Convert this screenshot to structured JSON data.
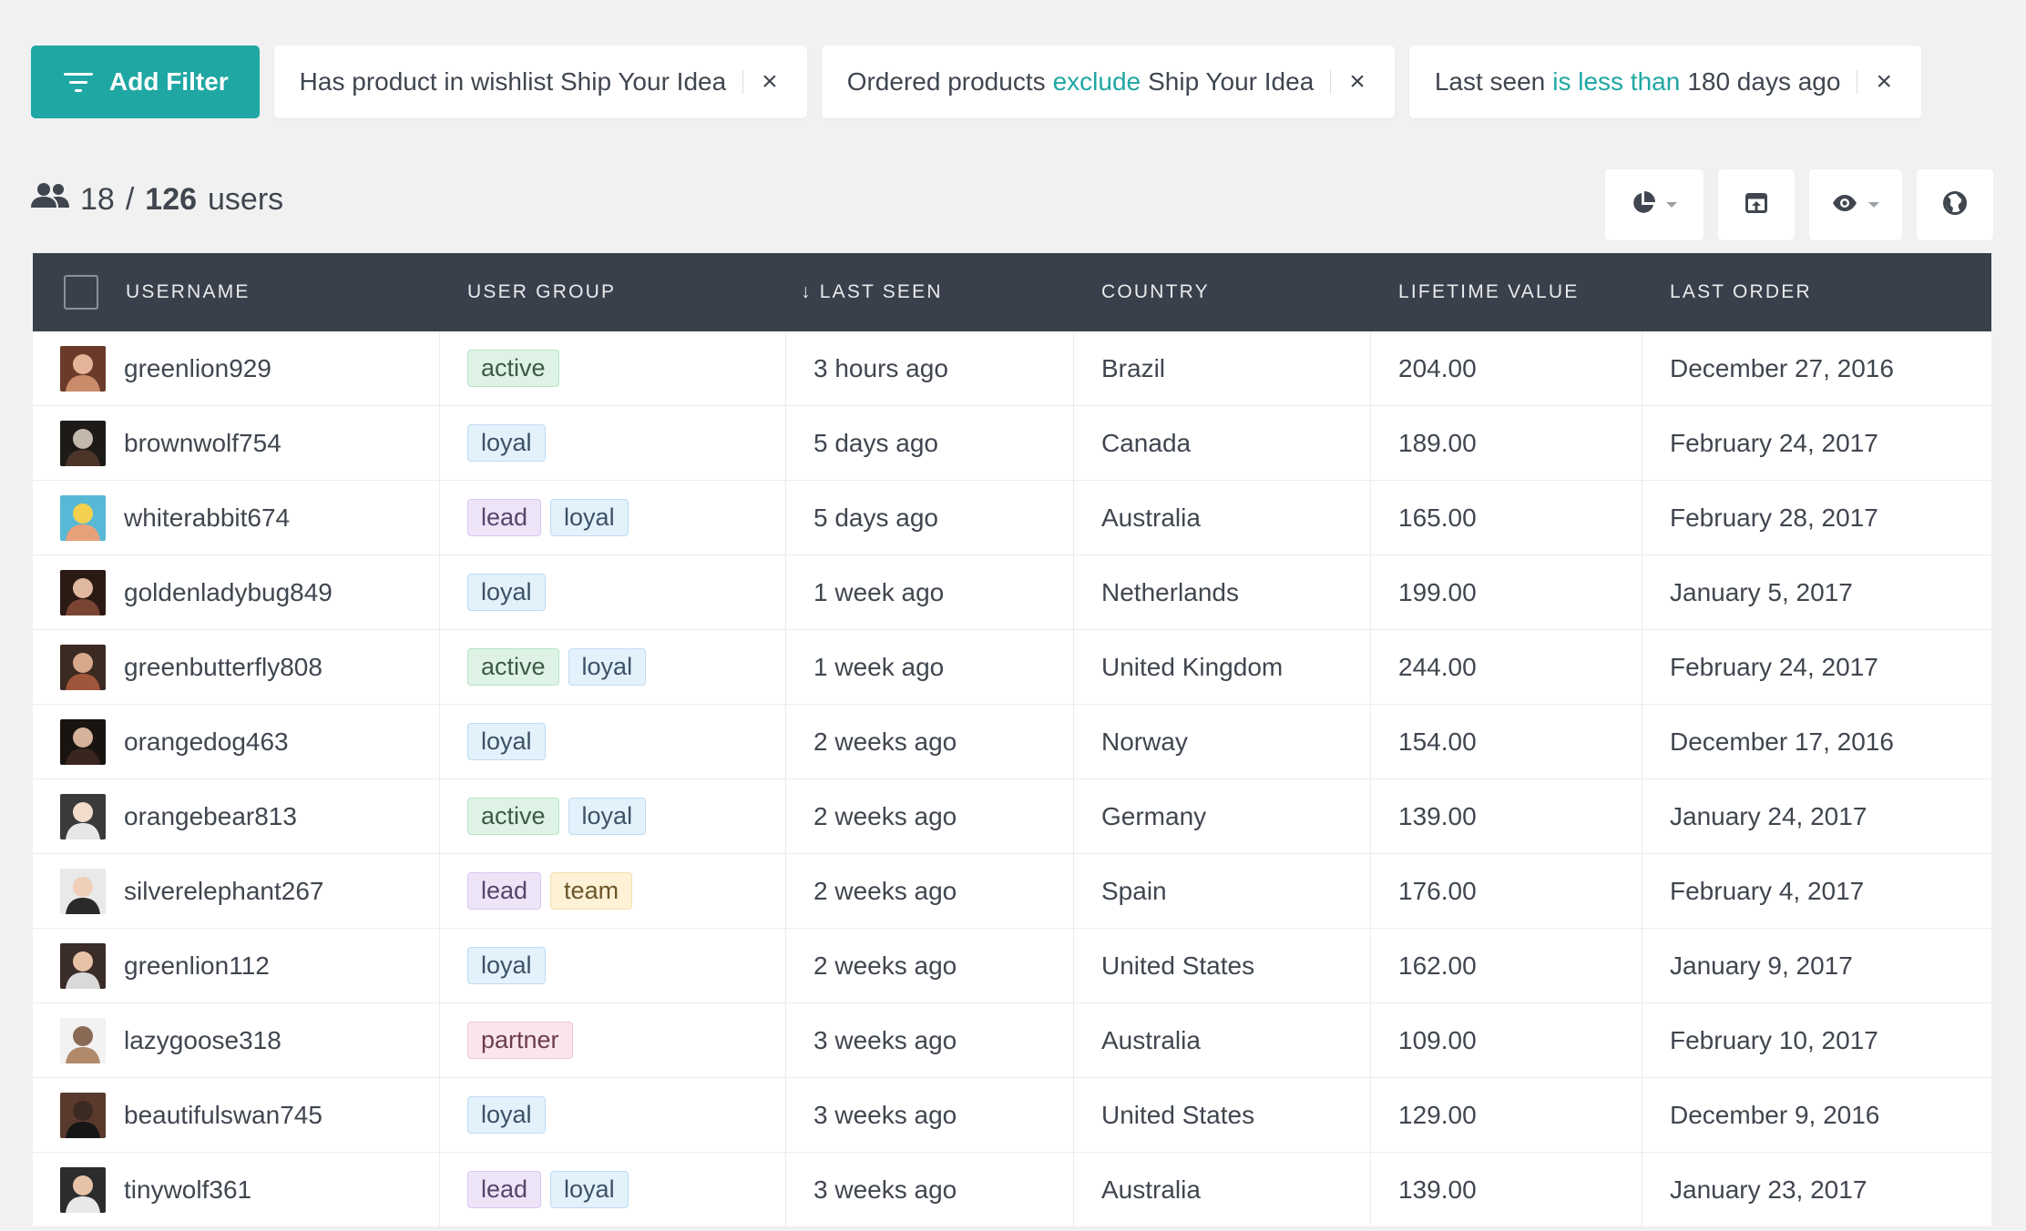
{
  "filters": {
    "add_label": "Add Filter",
    "chips": [
      {
        "pre": "Has product in wishlist Ship Your Idea",
        "hl": "",
        "post": ""
      },
      {
        "pre": "Ordered products",
        "hl": "exclude",
        "post": "Ship Your Idea"
      },
      {
        "pre": "Last seen",
        "hl": "is less than",
        "post": "180 days ago"
      }
    ],
    "close_glyph": "×"
  },
  "count": {
    "shown": "18",
    "sep": "/",
    "total": "126",
    "unit": "users"
  },
  "colors": {
    "accent": "#1fa7a3",
    "header_bg": "#3a404b"
  },
  "toolbar": {
    "icons": [
      "pie-chart-icon",
      "export-icon",
      "eye-icon",
      "globe-icon"
    ]
  },
  "table": {
    "headers": [
      "USERNAME",
      "USER GROUP",
      "↓ LAST SEEN",
      "COUNTRY",
      "LIFETIME VALUE",
      "LAST ORDER"
    ],
    "rows": [
      {
        "username": "greenlion929",
        "groups": [
          "active"
        ],
        "last_seen": "3 hours ago",
        "country": "Brazil",
        "ltv": "204.00",
        "last_order": "December 27, 2016"
      },
      {
        "username": "brownwolf754",
        "groups": [
          "loyal"
        ],
        "last_seen": "5 days ago",
        "country": "Canada",
        "ltv": "189.00",
        "last_order": "February 24, 2017"
      },
      {
        "username": "whiterabbit674",
        "groups": [
          "lead",
          "loyal"
        ],
        "last_seen": "5 days ago",
        "country": "Australia",
        "ltv": "165.00",
        "last_order": "February 28, 2017"
      },
      {
        "username": "goldenladybug849",
        "groups": [
          "loyal"
        ],
        "last_seen": "1 week ago",
        "country": "Netherlands",
        "ltv": "199.00",
        "last_order": "January 5, 2017"
      },
      {
        "username": "greenbutterfly808",
        "groups": [
          "active",
          "loyal"
        ],
        "last_seen": "1 week ago",
        "country": "United Kingdom",
        "ltv": "244.00",
        "last_order": "February 24, 2017"
      },
      {
        "username": "orangedog463",
        "groups": [
          "loyal"
        ],
        "last_seen": "2 weeks ago",
        "country": "Norway",
        "ltv": "154.00",
        "last_order": "December 17, 2016"
      },
      {
        "username": "orangebear813",
        "groups": [
          "active",
          "loyal"
        ],
        "last_seen": "2 weeks ago",
        "country": "Germany",
        "ltv": "139.00",
        "last_order": "January 24, 2017"
      },
      {
        "username": "silverelephant267",
        "groups": [
          "lead",
          "team"
        ],
        "last_seen": "2 weeks ago",
        "country": "Spain",
        "ltv": "176.00",
        "last_order": "February 4, 2017"
      },
      {
        "username": "greenlion112",
        "groups": [
          "loyal"
        ],
        "last_seen": "2 weeks ago",
        "country": "United States",
        "ltv": "162.00",
        "last_order": "January 9, 2017"
      },
      {
        "username": "lazygoose318",
        "groups": [
          "partner"
        ],
        "last_seen": "3 weeks ago",
        "country": "Australia",
        "ltv": "109.00",
        "last_order": "February 10, 2017"
      },
      {
        "username": "beautifulswan745",
        "groups": [
          "loyal"
        ],
        "last_seen": "3 weeks ago",
        "country": "United States",
        "ltv": "129.00",
        "last_order": "December 9, 2016"
      },
      {
        "username": "tinywolf361",
        "groups": [
          "lead",
          "loyal"
        ],
        "last_seen": "3 weeks ago",
        "country": "Australia",
        "ltv": "139.00",
        "last_order": "January 23, 2017"
      }
    ]
  }
}
